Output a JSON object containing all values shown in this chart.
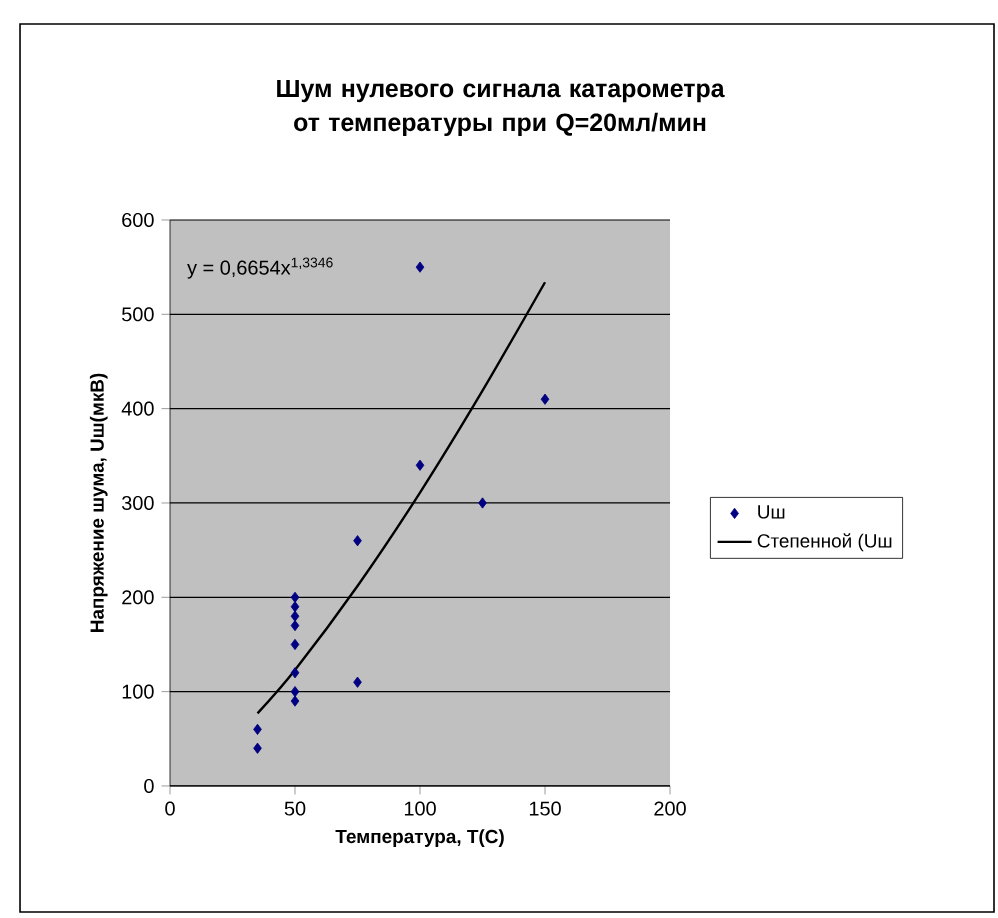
{
  "chart_data": {
    "type": "scatter",
    "title": "Шум нулевого сигнала катарометра от температуры при Q=20мл/мин",
    "xlabel": "Температура, Т(С)",
    "ylabel": "Напряжение шума, Uш(мкВ)",
    "series": [
      {
        "name": "Uш",
        "color": "#000080",
        "marker": "diamond",
        "x": [
          35,
          35,
          50,
          50,
          50,
          50,
          50,
          50,
          50,
          50,
          75,
          75,
          100,
          100,
          125,
          150
        ],
        "values": [
          60,
          40,
          200,
          190,
          180,
          170,
          150,
          120,
          100,
          90,
          260,
          110,
          550,
          340,
          300,
          410
        ]
      },
      {
        "name": "Степенной (Uш",
        "type": "line",
        "color": "#000000",
        "marker": "none",
        "line_style": "solid",
        "x": [
          35,
          50,
          75,
          100,
          125,
          150
        ],
        "values": [
          77,
          123,
          212,
          311,
          419,
          534
        ]
      }
    ],
    "annotations": [
      "y = 0,6654x$^{1,3346}$"
    ],
    "xlim": [
      0,
      200
    ],
    "xticks": [
      0,
      50,
      100,
      150,
      200
    ],
    "ylim": [
      0,
      600
    ],
    "yticks": [
      0,
      100,
      200,
      300,
      400,
      500,
      600
    ],
    "grid": "y",
    "legend": "right"
  }
}
